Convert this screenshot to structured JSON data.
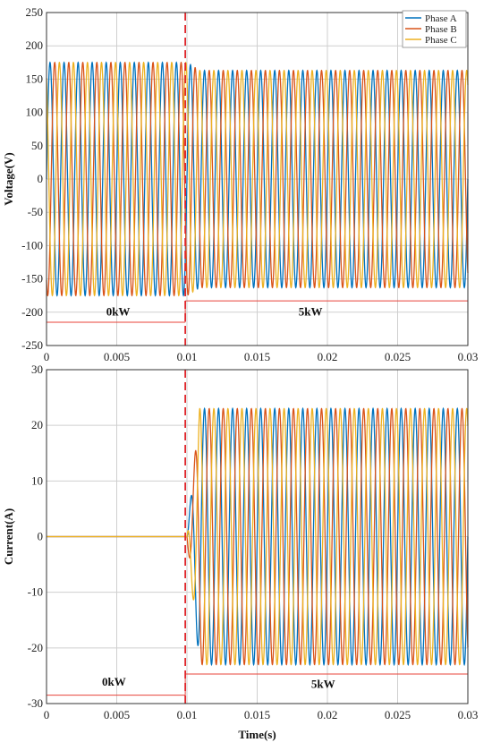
{
  "chart_data": [
    {
      "type": "line",
      "title": "",
      "xlabel": "",
      "ylabel": "Voltage(V)",
      "xlim": [
        0,
        0.03
      ],
      "ylim": [
        -250,
        250
      ],
      "x_ticks": [
        0,
        0.005,
        0.01,
        0.015,
        0.02,
        0.025,
        0.03
      ],
      "x_tick_labels": [
        "0",
        "0.005",
        "0.01",
        "0.015",
        "0.02",
        "0.025",
        "0.03"
      ],
      "y_ticks": [
        -250,
        -200,
        -150,
        -100,
        -50,
        0,
        50,
        100,
        150,
        200,
        250
      ],
      "y_tick_labels": [
        "-250",
        "-200",
        "-150",
        "-100",
        "-50",
        "0",
        "50",
        "100",
        "150",
        "200",
        "250"
      ],
      "grid": true,
      "legend": "top-right",
      "frequency_hz": 1000,
      "series": [
        {
          "name": "Phase A",
          "color": "#0072BD",
          "phase_deg": 0,
          "amplitude_before": 175,
          "amplitude_after": 163
        },
        {
          "name": "Phase B",
          "color": "#D95319",
          "phase_deg": -120,
          "amplitude_before": 175,
          "amplitude_after": 163
        },
        {
          "name": "Phase C",
          "color": "#EDB120",
          "phase_deg": 120,
          "amplitude_before": 175,
          "amplitude_after": 163
        }
      ],
      "step_time": 0.01,
      "annotations": [
        {
          "text": "0kW",
          "x": 0.0051,
          "y": -205
        },
        {
          "text": "5kW",
          "x": 0.0188,
          "y": -205
        }
      ],
      "load_line": {
        "color": "#E8433A",
        "before": {
          "x": [
            0,
            0.00988
          ],
          "y": -215
        },
        "after": {
          "x": [
            0.00988,
            0.03
          ],
          "y": -183
        }
      },
      "marker_line": {
        "x": 0.00988,
        "color": "#E0262B",
        "style": "dashed"
      }
    },
    {
      "type": "line",
      "title": "",
      "xlabel": "Time(s)",
      "ylabel": "Current(A)",
      "xlim": [
        0,
        0.03
      ],
      "ylim": [
        -30,
        30
      ],
      "x_ticks": [
        0,
        0.005,
        0.01,
        0.015,
        0.02,
        0.025,
        0.03
      ],
      "x_tick_labels": [
        "0",
        "0.005",
        "0.01",
        "0.015",
        "0.02",
        "0.025",
        "0.03"
      ],
      "y_ticks": [
        -30,
        -20,
        -10,
        0,
        10,
        20,
        30
      ],
      "y_tick_labels": [
        "-30",
        "-20",
        "-10",
        "0",
        "10",
        "20",
        "30"
      ],
      "grid": true,
      "frequency_hz": 1000,
      "series": [
        {
          "name": "Phase A",
          "color": "#0072BD",
          "phase_deg": 0,
          "amplitude_before": 0,
          "amplitude_after": 23
        },
        {
          "name": "Phase B",
          "color": "#D95319",
          "phase_deg": -120,
          "amplitude_before": 0,
          "amplitude_after": 23
        },
        {
          "name": "Phase C",
          "color": "#EDB120",
          "phase_deg": 120,
          "amplitude_before": 0,
          "amplitude_after": 23
        }
      ],
      "step_time": 0.01,
      "annotations": [
        {
          "text": "0kW",
          "x": 0.0048,
          "y": -26.8
        },
        {
          "text": "5kW",
          "x": 0.0197,
          "y": -27.2
        }
      ],
      "load_line": {
        "color": "#E8433A",
        "before": {
          "x": [
            0,
            0.00988
          ],
          "y": -28.5
        },
        "after": {
          "x": [
            0.00988,
            0.03
          ],
          "y": -24.7
        }
      },
      "marker_line": {
        "x": 0.00988,
        "color": "#E0262B",
        "style": "dashed"
      }
    }
  ]
}
